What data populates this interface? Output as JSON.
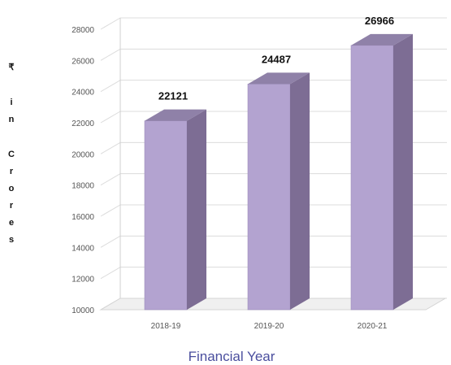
{
  "chart_data": {
    "type": "bar",
    "categories": [
      "2018-19",
      "2019-20",
      "2020-21"
    ],
    "values": [
      22121,
      24487,
      26966
    ],
    "xlabel": "Financial Year",
    "ylabel": "₹ in Crores",
    "ylim": [
      10000,
      28000
    ],
    "yticks": [
      10000,
      12000,
      14000,
      16000,
      18000,
      20000,
      22000,
      24000,
      26000,
      28000
    ],
    "grid": true,
    "bar_color": "#b3a3d0",
    "bar_side_color": "#7d6d94",
    "bar_top_color": "#8f81a8",
    "xlabel_color": "#4a4e9e"
  }
}
